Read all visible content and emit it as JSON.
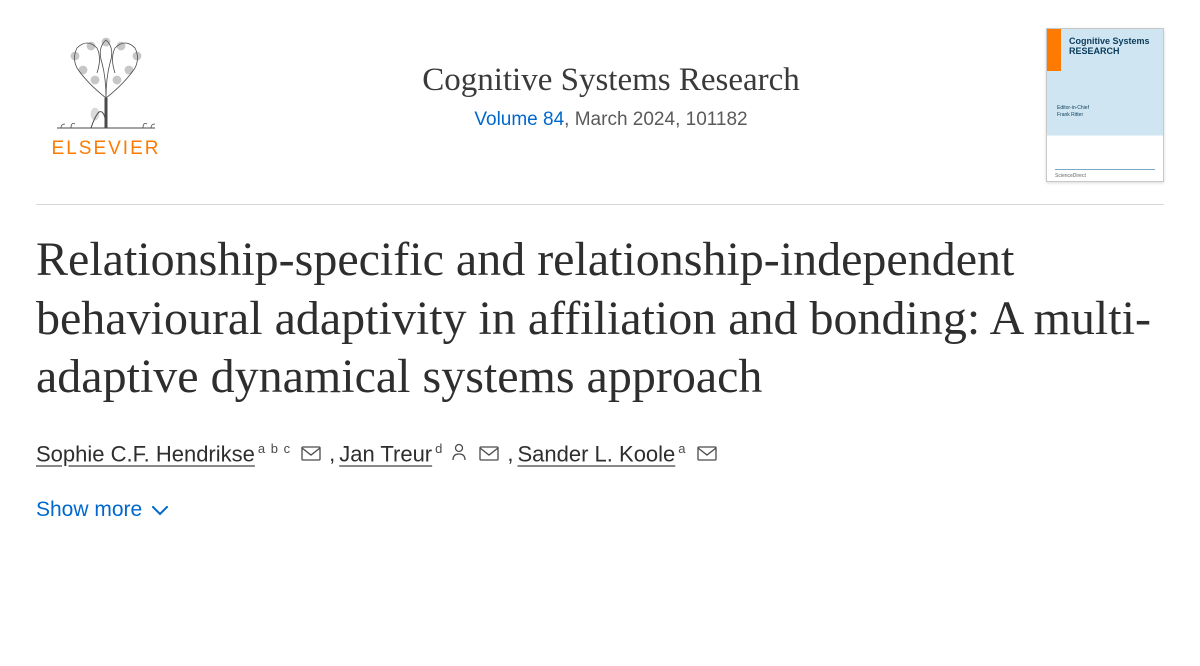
{
  "publisher": {
    "name": "ELSEVIER",
    "color": "#ff7a00"
  },
  "journal": {
    "name": "Cognitive Systems Research",
    "volume_link_text": "Volume 84",
    "issue_rest": ", March 2024, 101182",
    "cover_title_line1": "Cognitive Systems",
    "cover_title_line2": "RESEARCH"
  },
  "article": {
    "title": "Relationship-specific and relationship-independent behavioural adaptivity in affiliation and bonding: A multi-adaptive dynamical systems approach"
  },
  "authors": [
    {
      "name": "Sophie C.F. Hendrikse",
      "affiliations": "a b c",
      "has_person_icon": false,
      "has_mail": true
    },
    {
      "name": "Jan Treur",
      "affiliations": "d",
      "has_person_icon": true,
      "has_mail": true
    },
    {
      "name": "Sander L. Koole",
      "affiliations": "a",
      "has_person_icon": false,
      "has_mail": true
    }
  ],
  "show_more_label": "Show more",
  "colors": {
    "link": "#0068cc",
    "text": "#2e2e2e",
    "accent": "#ff7a00"
  }
}
